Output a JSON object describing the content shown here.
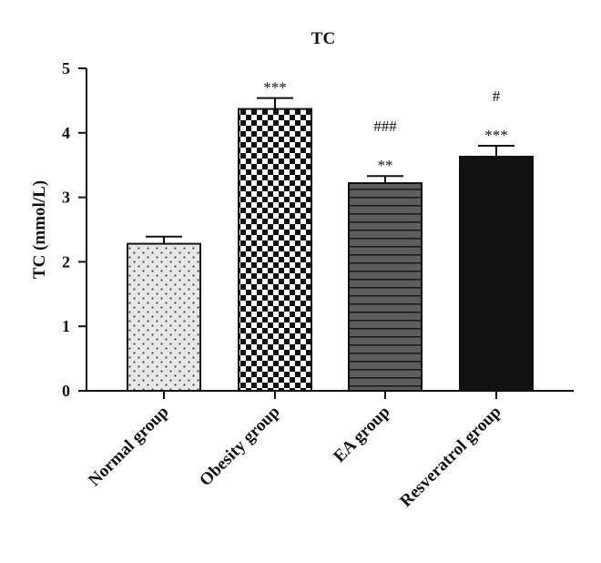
{
  "chart_data": {
    "type": "bar",
    "title": "TC",
    "ylabel": "TC (mmol/L)",
    "xlabel": "",
    "ylim": [
      0,
      5
    ],
    "yticks": [
      0,
      1,
      2,
      3,
      4,
      5
    ],
    "grid": false,
    "categories": [
      "Normal group",
      "Obesity group",
      "EA group",
      "Resveratrol group"
    ],
    "values": [
      2.28,
      4.37,
      3.22,
      3.63
    ],
    "errors": [
      0.11,
      0.17,
      0.11,
      0.17
    ],
    "annotations": [
      [],
      [
        "***"
      ],
      [
        "**",
        "###"
      ],
      [
        "***",
        "#"
      ]
    ],
    "fills": [
      "dots",
      "checkerboard",
      "horizontal-stripes",
      "solid-black"
    ],
    "colors": {
      "bar_edge": "#111111",
      "axis": "#111111"
    }
  }
}
